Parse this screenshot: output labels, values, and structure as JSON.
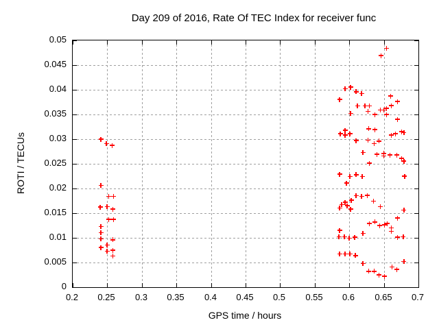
{
  "colors": {
    "background": "#ffffff",
    "text": "#000000",
    "frame": "#000000",
    "grid": "#9e9e9e",
    "marker": "#ff0000"
  },
  "chart_data": {
    "type": "scatter",
    "title": "Day 209 of 2016, Rate Of TEC Index for receiver func",
    "xlabel": "GPS time / hours",
    "ylabel": "ROTI / TECUs",
    "xlim": [
      0.2,
      0.7
    ],
    "ylim": [
      0,
      0.05
    ],
    "xticks": [
      0.2,
      0.25,
      0.3,
      0.35,
      0.4,
      0.45,
      0.5,
      0.55,
      0.6,
      0.65,
      0.7
    ],
    "xtick_labels": [
      "0.2",
      "0.25",
      "0.3",
      "0.35",
      "0.4",
      "0.45",
      "0.5",
      "0.55",
      "0.6",
      "0.65",
      "0.7"
    ],
    "yticks": [
      0,
      0.005,
      0.01,
      0.015,
      0.02,
      0.025,
      0.03,
      0.035,
      0.04,
      0.045,
      0.05
    ],
    "ytick_labels": [
      "0",
      "0.005",
      "0.01",
      "0.015",
      "0.02",
      "0.025",
      "0.03",
      "0.035",
      "0.04",
      "0.045",
      "0.05"
    ],
    "grid": true,
    "legend": false,
    "marker": "plus",
    "series": [
      {
        "points": [
          [
            0.241,
            0.03
          ],
          [
            0.249,
            0.0291
          ],
          [
            0.257,
            0.0287
          ],
          [
            0.241,
            0.0206
          ],
          [
            0.252,
            0.0184
          ],
          [
            0.259,
            0.0184
          ],
          [
            0.24,
            0.0162
          ],
          [
            0.25,
            0.0163
          ],
          [
            0.258,
            0.0158
          ],
          [
            0.252,
            0.0137
          ],
          [
            0.259,
            0.0137
          ],
          [
            0.241,
            0.0123
          ],
          [
            0.241,
            0.011
          ],
          [
            0.241,
            0.0098
          ],
          [
            0.258,
            0.0096
          ],
          [
            0.25,
            0.0085
          ],
          [
            0.241,
            0.008
          ],
          [
            0.25,
            0.0073
          ],
          [
            0.258,
            0.0075
          ],
          [
            0.258,
            0.0063
          ],
          [
            0.654,
            0.0484
          ],
          [
            0.646,
            0.0469
          ],
          [
            0.594,
            0.0402
          ],
          [
            0.602,
            0.0405
          ],
          [
            0.61,
            0.0396
          ],
          [
            0.618,
            0.0392
          ],
          [
            0.586,
            0.038
          ],
          [
            0.66,
            0.0387
          ],
          [
            0.67,
            0.0376
          ],
          [
            0.612,
            0.0367
          ],
          [
            0.623,
            0.0367
          ],
          [
            0.629,
            0.0367
          ],
          [
            0.661,
            0.0368
          ],
          [
            0.627,
            0.0356
          ],
          [
            0.637,
            0.035
          ],
          [
            0.645,
            0.0359
          ],
          [
            0.65,
            0.0359
          ],
          [
            0.654,
            0.0362
          ],
          [
            0.654,
            0.035
          ],
          [
            0.602,
            0.0352
          ],
          [
            0.67,
            0.034
          ],
          [
            0.587,
            0.0311
          ],
          [
            0.594,
            0.0318
          ],
          [
            0.594,
            0.0308
          ],
          [
            0.601,
            0.0311
          ],
          [
            0.628,
            0.0321
          ],
          [
            0.637,
            0.0319
          ],
          [
            0.661,
            0.0308
          ],
          [
            0.667,
            0.0311
          ],
          [
            0.676,
            0.0315
          ],
          [
            0.679,
            0.0313
          ],
          [
            0.61,
            0.0297
          ],
          [
            0.627,
            0.0298
          ],
          [
            0.636,
            0.0291
          ],
          [
            0.643,
            0.0296
          ],
          [
            0.62,
            0.0273
          ],
          [
            0.64,
            0.0269
          ],
          [
            0.65,
            0.0271
          ],
          [
            0.65,
            0.0266
          ],
          [
            0.659,
            0.0268
          ],
          [
            0.669,
            0.0268
          ],
          [
            0.676,
            0.0261
          ],
          [
            0.679,
            0.0255
          ],
          [
            0.629,
            0.0251
          ],
          [
            0.586,
            0.0229
          ],
          [
            0.601,
            0.0224
          ],
          [
            0.61,
            0.0228
          ],
          [
            0.619,
            0.0224
          ],
          [
            0.68,
            0.0225
          ],
          [
            0.596,
            0.0211
          ],
          [
            0.61,
            0.0185
          ],
          [
            0.618,
            0.0184
          ],
          [
            0.626,
            0.0186
          ],
          [
            0.603,
            0.0176
          ],
          [
            0.635,
            0.0174
          ],
          [
            0.594,
            0.0172
          ],
          [
            0.589,
            0.0167
          ],
          [
            0.597,
            0.0165
          ],
          [
            0.586,
            0.016
          ],
          [
            0.602,
            0.0158
          ],
          [
            0.645,
            0.0163
          ],
          [
            0.679,
            0.0156
          ],
          [
            0.67,
            0.014
          ],
          [
            0.629,
            0.0129
          ],
          [
            0.637,
            0.0132
          ],
          [
            0.644,
            0.0125
          ],
          [
            0.651,
            0.0126
          ],
          [
            0.655,
            0.0129
          ],
          [
            0.661,
            0.012
          ],
          [
            0.661,
            0.0113
          ],
          [
            0.586,
            0.0115
          ],
          [
            0.585,
            0.0102
          ],
          [
            0.593,
            0.0102
          ],
          [
            0.6,
            0.0099
          ],
          [
            0.608,
            0.0101
          ],
          [
            0.62,
            0.0109
          ],
          [
            0.67,
            0.0101
          ],
          [
            0.678,
            0.0102
          ],
          [
            0.586,
            0.0067
          ],
          [
            0.594,
            0.0067
          ],
          [
            0.601,
            0.0067
          ],
          [
            0.609,
            0.0064
          ],
          [
            0.62,
            0.0048
          ],
          [
            0.679,
            0.0052
          ],
          [
            0.662,
            0.0041
          ],
          [
            0.669,
            0.0036
          ],
          [
            0.628,
            0.0032
          ],
          [
            0.636,
            0.0032
          ],
          [
            0.643,
            0.0025
          ],
          [
            0.651,
            0.0022
          ]
        ]
      }
    ]
  }
}
